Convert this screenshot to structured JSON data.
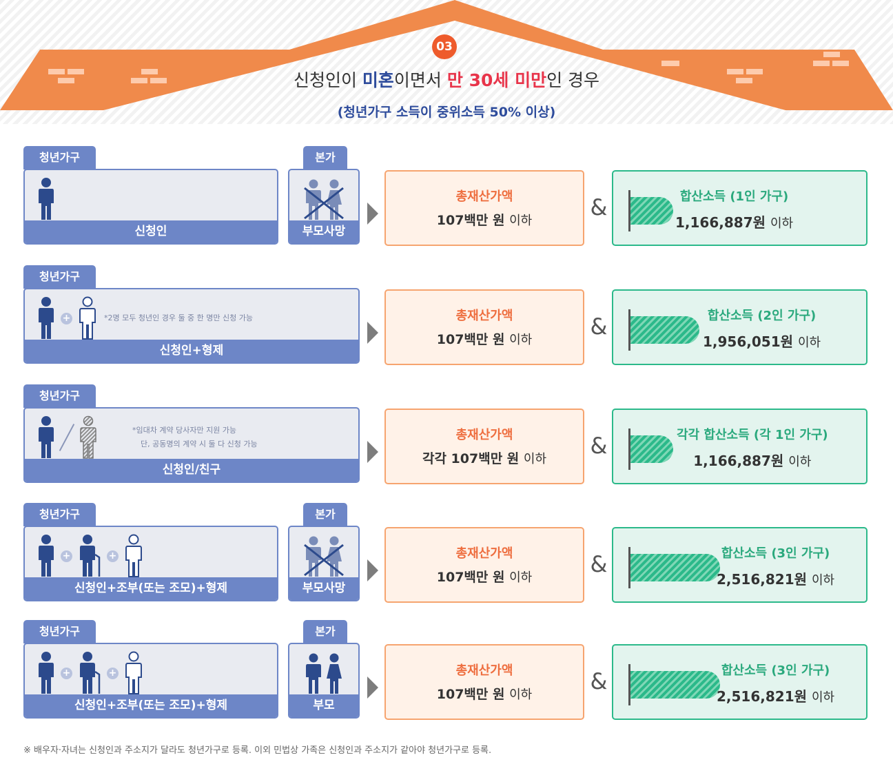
{
  "header": {
    "badge": "03",
    "title_part1": "신청인이 ",
    "title_part2": "미혼",
    "title_part3": "이면서  ",
    "title_part4": "만 30세 미만",
    "title_part5": "인 경우",
    "subtitle": "(청년가구 소득이 중위소득 50% 이상)"
  },
  "labels": {
    "household_tab": "청년가구",
    "parent_tab": "본가",
    "asset_label": "총재산가액",
    "won": "원",
    "below": "이하",
    "amp": "&"
  },
  "rows": [
    {
      "household": "신청인",
      "parent": "부모사망",
      "note1": "",
      "note2": "",
      "asset_prefix": "",
      "asset_value": "107백만",
      "income_label": "합산소득 (1인 가구)",
      "income_value": "1,166,887원"
    },
    {
      "household": "신청인+형제",
      "parent": "",
      "note1": "*2명 모두 청년인 경우 둘 중 한 명만 신청 가능",
      "note2": "",
      "asset_prefix": "",
      "asset_value": "107백만",
      "income_label": "합산소득 (2인 가구)",
      "income_value": "1,956,051원"
    },
    {
      "household": "신청인/친구",
      "parent": "",
      "note1": "*임대차 계약 당사자만 지원 가능",
      "note2": "단, 공동명의 계약 시 둘 다 신청 가능",
      "asset_prefix": "각각 ",
      "asset_value": "107백만",
      "income_label": "각각 합산소득 (각 1인 가구)",
      "income_value": "1,166,887원"
    },
    {
      "household": "신청인+조부(또는 조모)+형제",
      "parent": "부모사망",
      "note1": "",
      "note2": "",
      "asset_prefix": "",
      "asset_value": "107백만",
      "income_label": "합산소득 (3인 가구)",
      "income_value": "2,516,821원"
    },
    {
      "household": "신청인+조부(또는 조모)+형제",
      "parent": "부모",
      "note1": "",
      "note2": "",
      "asset_prefix": "",
      "asset_value": "107백만",
      "income_label": "합산소득 (3인 가구)",
      "income_value": "2,516,821원"
    }
  ],
  "footer": "※ 배우자·자녀는 신청인과 주소지가 달라도 청년가구로 등록. 이외 민법상 가족은 신청인과 주소지가 같아야 청년가구로 등록.",
  "colors": {
    "orange": "#ee5b2c",
    "roof": "#f08a4b",
    "blue": "#6d86c7",
    "green": "#2bb98a",
    "red": "#e8344a"
  },
  "icons": [
    "person-icon",
    "plus-icon",
    "sibling-icon",
    "friend-icon",
    "grandparent-icon",
    "crossed-parents-icon",
    "parents-icon",
    "income-bar-icon"
  ],
  "income_levels": [
    1,
    2,
    1,
    3,
    3
  ]
}
